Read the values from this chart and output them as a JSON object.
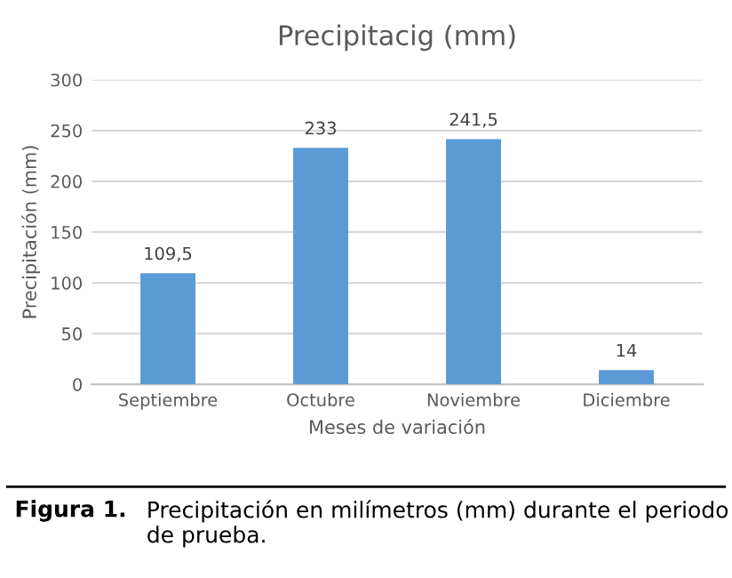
{
  "chart_data": {
    "type": "bar",
    "title": "Precipitacig (mm)",
    "xlabel": "Meses de variación",
    "ylabel": "Precipitación (mm)",
    "categories": [
      "Septiembre",
      "Octubre",
      "Noviembre",
      "Diciembre"
    ],
    "values": [
      109.5,
      233,
      241.5,
      14
    ],
    "value_labels": [
      "109,5",
      "233",
      "241,5",
      "14"
    ],
    "color": "#5b9bd5",
    "ylim": [
      0,
      300
    ],
    "yticks": [
      0,
      50,
      100,
      150,
      200,
      250,
      300
    ],
    "grid": "y",
    "annotations": [
      "Figura 1.",
      "Precipitación en milímetros (mm) durante el periodo de prueba."
    ]
  }
}
